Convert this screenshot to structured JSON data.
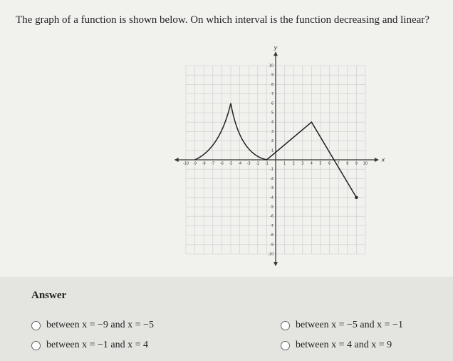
{
  "question": "The graph of a function is shown below. On which interval is the function decreasing and linear?",
  "graph": {
    "x_axis_label": "x",
    "y_axis_label": "y",
    "x_tick_labels": [
      "-10",
      "-9",
      "-8",
      "-7",
      "-6",
      "-5",
      "-4",
      "-3",
      "-2",
      "-1",
      "1",
      "2",
      "3",
      "4",
      "5",
      "6",
      "7",
      "8",
      "9",
      "10"
    ],
    "y_tick_labels": [
      "10",
      "9",
      "8",
      "7",
      "6",
      "5",
      "4",
      "3",
      "2",
      "1",
      "-1",
      "-2",
      "-3",
      "-4",
      "-5",
      "-6",
      "-7",
      "-8",
      "-9",
      "-10"
    ]
  },
  "answer": {
    "heading": "Answer",
    "options": [
      "between x = −9 and x = −5",
      "between x = −5 and x = −1",
      "between x = −1 and x = 4",
      "between x = 4 and x = 9"
    ]
  }
}
